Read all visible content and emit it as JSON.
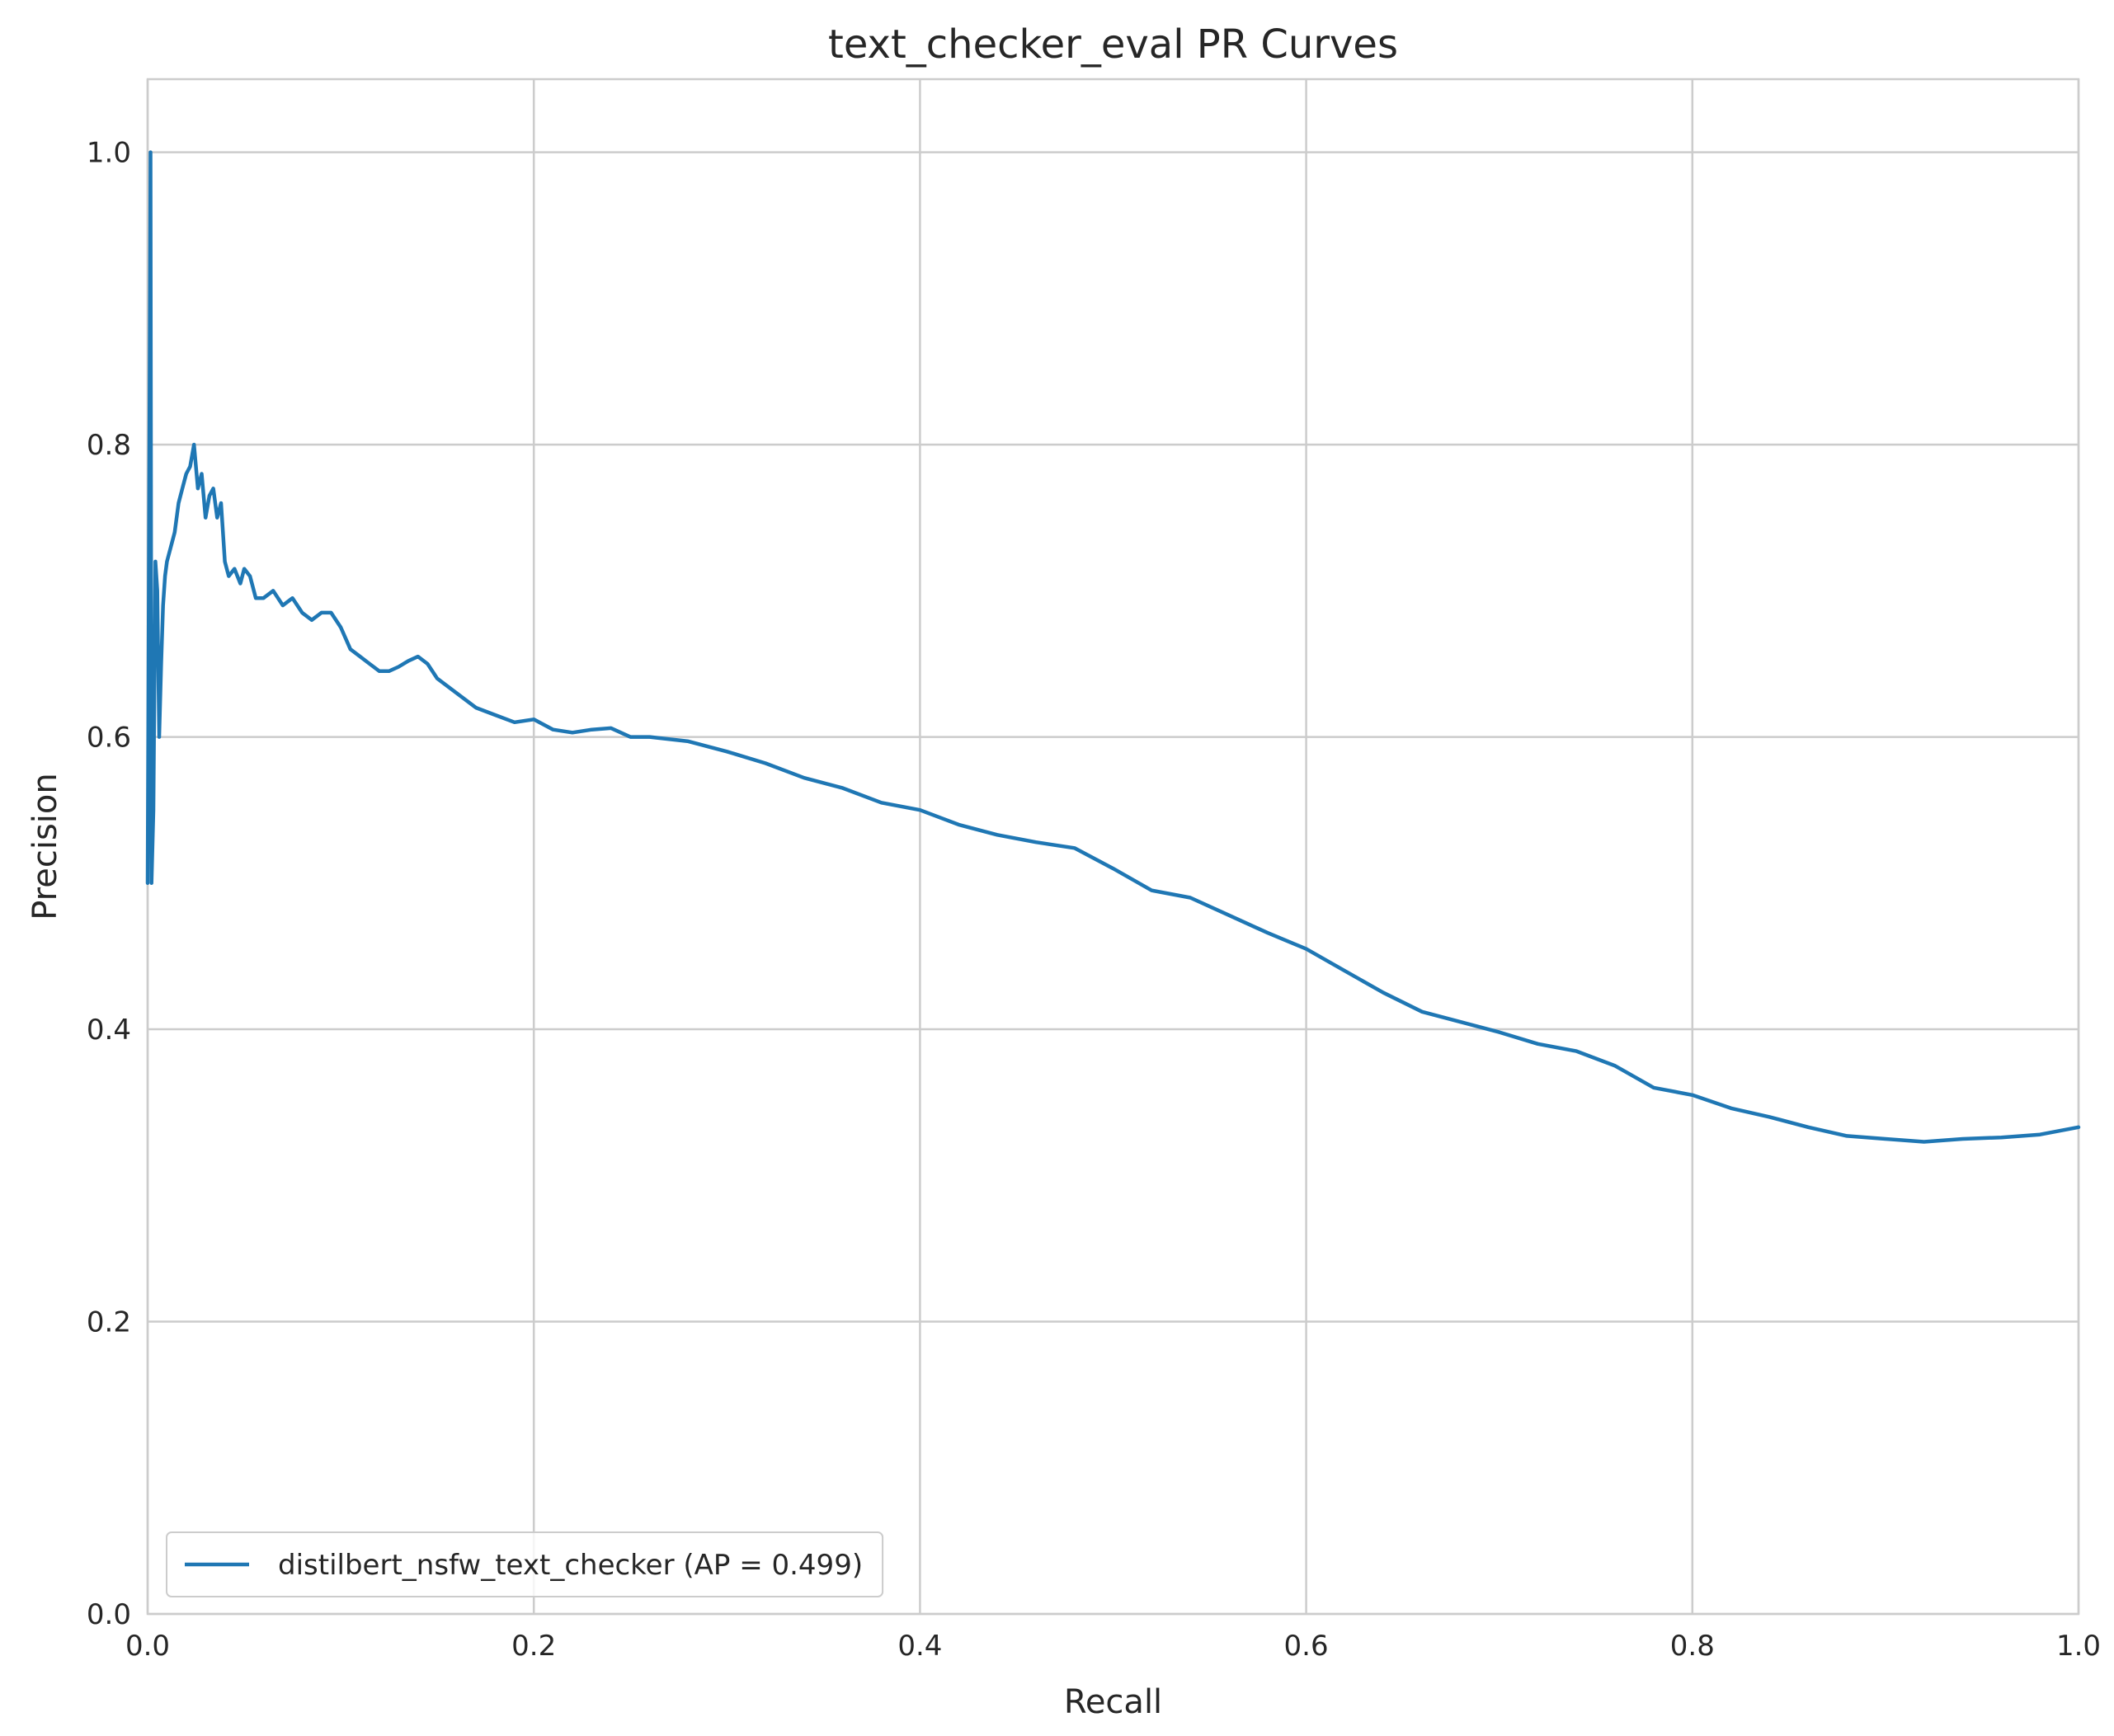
{
  "chart_data": {
    "type": "line",
    "title": "text_checker_eval PR Curves",
    "xlabel": "Recall",
    "ylabel": "Precision",
    "xlim": [
      0.0,
      1.0
    ],
    "ylim": [
      0.0,
      1.05
    ],
    "xticks": [
      0.0,
      0.2,
      0.4,
      0.6,
      0.8,
      1.0
    ],
    "xtick_labels": [
      "0.0",
      "0.2",
      "0.4",
      "0.6",
      "0.8",
      "1.0"
    ],
    "yticks": [
      0.0,
      0.2,
      0.4,
      0.6,
      0.8,
      1.0
    ],
    "ytick_labels": [
      "0.0",
      "0.2",
      "0.4",
      "0.6",
      "0.8",
      "1.0"
    ],
    "grid": true,
    "legend_position": "lower-left",
    "series": [
      {
        "name": "distilbert_nsfw_text_checker (AP = 0.499)",
        "color": "#1f77b4",
        "x": [
          0.0,
          0.0015,
          0.002,
          0.003,
          0.004,
          0.005,
          0.006,
          0.007,
          0.008,
          0.009,
          0.01,
          0.012,
          0.014,
          0.016,
          0.018,
          0.02,
          0.022,
          0.024,
          0.026,
          0.028,
          0.03,
          0.032,
          0.034,
          0.036,
          0.038,
          0.04,
          0.042,
          0.045,
          0.048,
          0.05,
          0.053,
          0.056,
          0.06,
          0.065,
          0.07,
          0.075,
          0.08,
          0.085,
          0.09,
          0.095,
          0.1,
          0.105,
          0.11,
          0.115,
          0.12,
          0.125,
          0.13,
          0.135,
          0.14,
          0.145,
          0.15,
          0.16,
          0.17,
          0.18,
          0.19,
          0.2,
          0.21,
          0.22,
          0.23,
          0.24,
          0.25,
          0.26,
          0.28,
          0.3,
          0.32,
          0.34,
          0.36,
          0.38,
          0.4,
          0.42,
          0.44,
          0.46,
          0.48,
          0.5,
          0.52,
          0.54,
          0.56,
          0.58,
          0.6,
          0.62,
          0.64,
          0.66,
          0.68,
          0.7,
          0.72,
          0.74,
          0.76,
          0.78,
          0.8,
          0.82,
          0.84,
          0.86,
          0.88,
          0.9,
          0.92,
          0.94,
          0.96,
          0.98,
          1.0
        ],
        "y": [
          0.5,
          1.0,
          0.5,
          0.55,
          0.72,
          0.7,
          0.6,
          0.65,
          0.69,
          0.71,
          0.72,
          0.73,
          0.74,
          0.76,
          0.77,
          0.78,
          0.785,
          0.8,
          0.77,
          0.78,
          0.75,
          0.765,
          0.77,
          0.75,
          0.76,
          0.72,
          0.71,
          0.715,
          0.705,
          0.715,
          0.71,
          0.695,
          0.695,
          0.7,
          0.69,
          0.695,
          0.685,
          0.68,
          0.685,
          0.685,
          0.675,
          0.66,
          0.655,
          0.65,
          0.645,
          0.645,
          0.648,
          0.652,
          0.655,
          0.65,
          0.64,
          0.63,
          0.62,
          0.615,
          0.61,
          0.612,
          0.605,
          0.603,
          0.605,
          0.606,
          0.6,
          0.6,
          0.597,
          0.59,
          0.582,
          0.572,
          0.565,
          0.555,
          0.55,
          0.54,
          0.533,
          0.528,
          0.524,
          0.51,
          0.495,
          0.49,
          0.478,
          0.466,
          0.455,
          0.44,
          0.425,
          0.412,
          0.405,
          0.398,
          0.39,
          0.385,
          0.375,
          0.36,
          0.355,
          0.346,
          0.34,
          0.333,
          0.327,
          0.325,
          0.323,
          0.325,
          0.326,
          0.328,
          0.333
        ]
      }
    ]
  }
}
